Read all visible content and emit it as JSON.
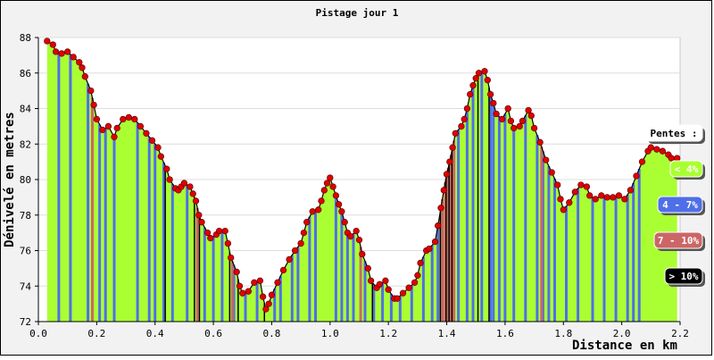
{
  "chart_data": {
    "type": "area",
    "title": "Pistage jour 1",
    "xlabel": "Distance en km",
    "ylabel": "Dénivelé en metres",
    "xlim": [
      0.0,
      2.2
    ],
    "ylim": [
      72,
      88
    ],
    "x_ticks": [
      "0.0",
      "0.2",
      "0.4",
      "0.6",
      "0.8",
      "1.0",
      "1.2",
      "1.4",
      "1.6",
      "1.8",
      "2.0",
      "2.2"
    ],
    "y_ticks": [
      "72",
      "74",
      "76",
      "78",
      "80",
      "82",
      "84",
      "86",
      "88"
    ],
    "grid": true,
    "legend": {
      "placement": "right",
      "title": "Pentes :",
      "items": [
        {
          "label": "< 4%",
          "color": "#aaff33"
        },
        {
          "label": "4 - 7%",
          "color": "#4f6fe8"
        },
        {
          "label": "7 - 10%",
          "color": "#cc6666"
        },
        {
          "label": "> 10%",
          "color": "#000000"
        }
      ]
    },
    "colors": {
      "slope_lt4": "#aaff33",
      "slope_4_7": "#4f6fe8",
      "slope_7_10": "#cc6666",
      "slope_gt10": "#000000",
      "marker": "#e00000"
    },
    "profile": [
      {
        "x": 0.03,
        "y": 87.8
      },
      {
        "x": 0.05,
        "y": 87.6
      },
      {
        "x": 0.06,
        "y": 87.2
      },
      {
        "x": 0.08,
        "y": 87.1
      },
      {
        "x": 0.1,
        "y": 87.2
      },
      {
        "x": 0.12,
        "y": 86.9
      },
      {
        "x": 0.14,
        "y": 86.6
      },
      {
        "x": 0.15,
        "y": 86.3
      },
      {
        "x": 0.16,
        "y": 85.8
      },
      {
        "x": 0.18,
        "y": 85.0
      },
      {
        "x": 0.19,
        "y": 84.2
      },
      {
        "x": 0.2,
        "y": 83.4
      },
      {
        "x": 0.22,
        "y": 82.8
      },
      {
        "x": 0.24,
        "y": 83.0
      },
      {
        "x": 0.26,
        "y": 82.4
      },
      {
        "x": 0.27,
        "y": 82.9
      },
      {
        "x": 0.29,
        "y": 83.4
      },
      {
        "x": 0.31,
        "y": 83.5
      },
      {
        "x": 0.33,
        "y": 83.4
      },
      {
        "x": 0.35,
        "y": 83.0
      },
      {
        "x": 0.37,
        "y": 82.6
      },
      {
        "x": 0.39,
        "y": 82.2
      },
      {
        "x": 0.41,
        "y": 81.8
      },
      {
        "x": 0.42,
        "y": 81.3
      },
      {
        "x": 0.44,
        "y": 80.6
      },
      {
        "x": 0.45,
        "y": 80.0
      },
      {
        "x": 0.47,
        "y": 79.5
      },
      {
        "x": 0.48,
        "y": 79.4
      },
      {
        "x": 0.49,
        "y": 79.6
      },
      {
        "x": 0.5,
        "y": 79.8
      },
      {
        "x": 0.52,
        "y": 79.6
      },
      {
        "x": 0.53,
        "y": 79.2
      },
      {
        "x": 0.54,
        "y": 78.8
      },
      {
        "x": 0.55,
        "y": 78.0
      },
      {
        "x": 0.56,
        "y": 77.6
      },
      {
        "x": 0.58,
        "y": 77.0
      },
      {
        "x": 0.59,
        "y": 76.7
      },
      {
        "x": 0.61,
        "y": 76.9
      },
      {
        "x": 0.62,
        "y": 77.1
      },
      {
        "x": 0.64,
        "y": 77.1
      },
      {
        "x": 0.65,
        "y": 76.4
      },
      {
        "x": 0.66,
        "y": 75.6
      },
      {
        "x": 0.68,
        "y": 74.8
      },
      {
        "x": 0.69,
        "y": 74.0
      },
      {
        "x": 0.7,
        "y": 73.6
      },
      {
        "x": 0.72,
        "y": 73.7
      },
      {
        "x": 0.74,
        "y": 74.2
      },
      {
        "x": 0.76,
        "y": 74.3
      },
      {
        "x": 0.77,
        "y": 73.4
      },
      {
        "x": 0.78,
        "y": 72.7
      },
      {
        "x": 0.79,
        "y": 73.0
      },
      {
        "x": 0.8,
        "y": 73.5
      },
      {
        "x": 0.82,
        "y": 74.2
      },
      {
        "x": 0.84,
        "y": 74.9
      },
      {
        "x": 0.86,
        "y": 75.5
      },
      {
        "x": 0.88,
        "y": 76.0
      },
      {
        "x": 0.9,
        "y": 76.4
      },
      {
        "x": 0.91,
        "y": 77.0
      },
      {
        "x": 0.92,
        "y": 77.6
      },
      {
        "x": 0.94,
        "y": 78.2
      },
      {
        "x": 0.96,
        "y": 78.3
      },
      {
        "x": 0.97,
        "y": 78.8
      },
      {
        "x": 0.98,
        "y": 79.4
      },
      {
        "x": 0.99,
        "y": 79.8
      },
      {
        "x": 1.0,
        "y": 80.1
      },
      {
        "x": 1.01,
        "y": 79.6
      },
      {
        "x": 1.02,
        "y": 79.1
      },
      {
        "x": 1.03,
        "y": 78.6
      },
      {
        "x": 1.04,
        "y": 78.2
      },
      {
        "x": 1.05,
        "y": 77.6
      },
      {
        "x": 1.06,
        "y": 77.0
      },
      {
        "x": 1.07,
        "y": 76.8
      },
      {
        "x": 1.09,
        "y": 77.1
      },
      {
        "x": 1.1,
        "y": 76.6
      },
      {
        "x": 1.11,
        "y": 75.8
      },
      {
        "x": 1.13,
        "y": 75.0
      },
      {
        "x": 1.14,
        "y": 74.3
      },
      {
        "x": 1.16,
        "y": 73.9
      },
      {
        "x": 1.17,
        "y": 74.1
      },
      {
        "x": 1.19,
        "y": 74.3
      },
      {
        "x": 1.2,
        "y": 73.8
      },
      {
        "x": 1.22,
        "y": 73.3
      },
      {
        "x": 1.23,
        "y": 73.3
      },
      {
        "x": 1.25,
        "y": 73.6
      },
      {
        "x": 1.27,
        "y": 73.9
      },
      {
        "x": 1.29,
        "y": 74.2
      },
      {
        "x": 1.3,
        "y": 74.6
      },
      {
        "x": 1.31,
        "y": 75.3
      },
      {
        "x": 1.33,
        "y": 76.0
      },
      {
        "x": 1.34,
        "y": 76.1
      },
      {
        "x": 1.36,
        "y": 76.5
      },
      {
        "x": 1.37,
        "y": 77.4
      },
      {
        "x": 1.38,
        "y": 78.4
      },
      {
        "x": 1.39,
        "y": 79.4
      },
      {
        "x": 1.4,
        "y": 80.3
      },
      {
        "x": 1.41,
        "y": 81.0
      },
      {
        "x": 1.42,
        "y": 81.8
      },
      {
        "x": 1.43,
        "y": 82.6
      },
      {
        "x": 1.45,
        "y": 83.0
      },
      {
        "x": 1.46,
        "y": 83.4
      },
      {
        "x": 1.47,
        "y": 84.0
      },
      {
        "x": 1.48,
        "y": 84.8
      },
      {
        "x": 1.49,
        "y": 85.3
      },
      {
        "x": 1.5,
        "y": 85.7
      },
      {
        "x": 1.51,
        "y": 86.0
      },
      {
        "x": 1.53,
        "y": 86.1
      },
      {
        "x": 1.54,
        "y": 85.6
      },
      {
        "x": 1.55,
        "y": 84.8
      },
      {
        "x": 1.56,
        "y": 84.3
      },
      {
        "x": 1.57,
        "y": 83.7
      },
      {
        "x": 1.59,
        "y": 83.4
      },
      {
        "x": 1.61,
        "y": 84.0
      },
      {
        "x": 1.62,
        "y": 83.3
      },
      {
        "x": 1.63,
        "y": 82.9
      },
      {
        "x": 1.65,
        "y": 83.0
      },
      {
        "x": 1.66,
        "y": 83.3
      },
      {
        "x": 1.68,
        "y": 83.9
      },
      {
        "x": 1.69,
        "y": 83.6
      },
      {
        "x": 1.7,
        "y": 82.9
      },
      {
        "x": 1.72,
        "y": 82.1
      },
      {
        "x": 1.74,
        "y": 81.1
      },
      {
        "x": 1.76,
        "y": 80.4
      },
      {
        "x": 1.78,
        "y": 79.7
      },
      {
        "x": 1.79,
        "y": 78.9
      },
      {
        "x": 1.8,
        "y": 78.3
      },
      {
        "x": 1.82,
        "y": 78.7
      },
      {
        "x": 1.84,
        "y": 79.3
      },
      {
        "x": 1.86,
        "y": 79.7
      },
      {
        "x": 1.88,
        "y": 79.6
      },
      {
        "x": 1.89,
        "y": 79.1
      },
      {
        "x": 1.91,
        "y": 78.9
      },
      {
        "x": 1.93,
        "y": 79.1
      },
      {
        "x": 1.95,
        "y": 79.0
      },
      {
        "x": 1.97,
        "y": 79.0
      },
      {
        "x": 1.99,
        "y": 79.1
      },
      {
        "x": 2.01,
        "y": 78.9
      },
      {
        "x": 2.03,
        "y": 79.4
      },
      {
        "x": 2.05,
        "y": 80.2
      },
      {
        "x": 2.07,
        "y": 81.0
      },
      {
        "x": 2.09,
        "y": 81.6
      },
      {
        "x": 2.1,
        "y": 81.8
      },
      {
        "x": 2.12,
        "y": 81.7
      },
      {
        "x": 2.14,
        "y": 81.6
      },
      {
        "x": 2.16,
        "y": 81.4
      },
      {
        "x": 2.17,
        "y": 81.2
      },
      {
        "x": 2.19,
        "y": 81.2
      }
    ],
    "slope_stripes": [
      {
        "x": 0.07,
        "class": "4-7"
      },
      {
        "x": 0.11,
        "class": "4-7"
      },
      {
        "x": 0.17,
        "class": "4-7"
      },
      {
        "x": 0.21,
        "class": "4-7"
      },
      {
        "x": 0.23,
        "class": "4-7"
      },
      {
        "x": 0.26,
        "class": "4-7"
      },
      {
        "x": 0.34,
        "class": "4-7"
      },
      {
        "x": 0.38,
        "class": "4-7"
      },
      {
        "x": 0.4,
        "class": "4-7"
      },
      {
        "x": 0.43,
        "class": "4-7"
      },
      {
        "x": 0.46,
        "class": "4-7"
      },
      {
        "x": 0.51,
        "class": "4-7"
      },
      {
        "x": 0.57,
        "class": "4-7"
      },
      {
        "x": 0.6,
        "class": "4-7"
      },
      {
        "x": 0.63,
        "class": "4-7"
      },
      {
        "x": 0.67,
        "class": "4-7"
      },
      {
        "x": 0.71,
        "class": "4-7"
      },
      {
        "x": 0.75,
        "class": "4-7"
      },
      {
        "x": 0.81,
        "class": "4-7"
      },
      {
        "x": 0.83,
        "class": "4-7"
      },
      {
        "x": 0.87,
        "class": "4-7"
      },
      {
        "x": 0.89,
        "class": "4-7"
      },
      {
        "x": 0.93,
        "class": "4-7"
      },
      {
        "x": 0.95,
        "class": "4-7"
      },
      {
        "x": 1.02,
        "class": "4-7"
      },
      {
        "x": 1.04,
        "class": "4-7"
      },
      {
        "x": 1.06,
        "class": "4-7"
      },
      {
        "x": 1.08,
        "class": "4-7"
      },
      {
        "x": 1.12,
        "class": "4-7"
      },
      {
        "x": 1.15,
        "class": "4-7"
      },
      {
        "x": 1.18,
        "class": "4-7"
      },
      {
        "x": 1.21,
        "class": "4-7"
      },
      {
        "x": 1.24,
        "class": "4-7"
      },
      {
        "x": 1.28,
        "class": "4-7"
      },
      {
        "x": 1.32,
        "class": "4-7"
      },
      {
        "x": 1.35,
        "class": "4-7"
      },
      {
        "x": 1.37,
        "class": "4-7"
      },
      {
        "x": 1.44,
        "class": "4-7"
      },
      {
        "x": 1.47,
        "class": "4-7"
      },
      {
        "x": 1.49,
        "class": "4-7"
      },
      {
        "x": 1.52,
        "class": "4-7"
      },
      {
        "x": 1.55,
        "class": "4-7"
      },
      {
        "x": 1.56,
        "class": "4-7"
      },
      {
        "x": 1.58,
        "class": "4-7"
      },
      {
        "x": 1.6,
        "class": "4-7"
      },
      {
        "x": 1.63,
        "class": "4-7"
      },
      {
        "x": 1.67,
        "class": "4-7"
      },
      {
        "x": 1.71,
        "class": "4-7"
      },
      {
        "x": 1.73,
        "class": "4-7"
      },
      {
        "x": 1.75,
        "class": "4-7"
      },
      {
        "x": 1.77,
        "class": "4-7"
      },
      {
        "x": 1.81,
        "class": "4-7"
      },
      {
        "x": 1.85,
        "class": "4-7"
      },
      {
        "x": 1.9,
        "class": "4-7"
      },
      {
        "x": 1.94,
        "class": "4-7"
      },
      {
        "x": 1.98,
        "class": "4-7"
      },
      {
        "x": 2.02,
        "class": "4-7"
      },
      {
        "x": 2.04,
        "class": "4-7"
      },
      {
        "x": 2.06,
        "class": "4-7"
      },
      {
        "x": 0.185,
        "class": "7-10"
      },
      {
        "x": 0.545,
        "class": "7-10"
      },
      {
        "x": 0.665,
        "class": "7-10"
      },
      {
        "x": 1.105,
        "class": "7-10"
      },
      {
        "x": 1.385,
        "class": "7-10"
      },
      {
        "x": 1.395,
        "class": "7-10"
      },
      {
        "x": 1.405,
        "class": "7-10"
      },
      {
        "x": 1.415,
        "class": "7-10"
      },
      {
        "x": 1.425,
        "class": "7-10"
      },
      {
        "x": 1.725,
        "class": "7-10"
      },
      {
        "x": 0.435,
        "class": ">10"
      },
      {
        "x": 0.535,
        "class": ">10"
      },
      {
        "x": 0.552,
        "class": ">10"
      },
      {
        "x": 0.656,
        "class": ">10"
      },
      {
        "x": 0.685,
        "class": ">10"
      },
      {
        "x": 0.775,
        "class": ">10"
      },
      {
        "x": 1.145,
        "class": ">10"
      },
      {
        "x": 1.378,
        "class": ">10"
      },
      {
        "x": 1.398,
        "class": ">10"
      },
      {
        "x": 1.408,
        "class": ">10"
      },
      {
        "x": 1.418,
        "class": ">10"
      },
      {
        "x": 1.507,
        "class": ">10"
      },
      {
        "x": 1.545,
        "class": ">10"
      }
    ]
  }
}
